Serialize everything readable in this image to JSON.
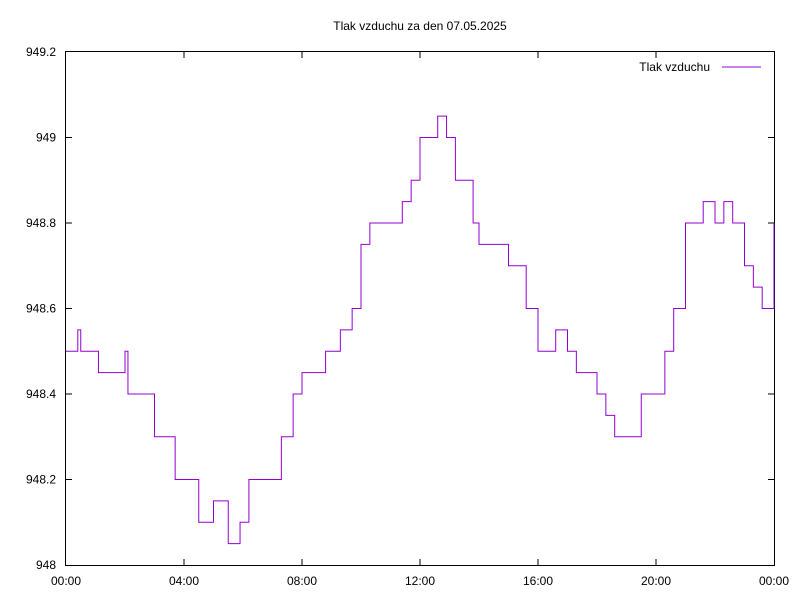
{
  "chart_data": {
    "type": "line",
    "title": "Tlak vzduchu za den 07.05.2025",
    "xlabel": "",
    "ylabel": "",
    "xlim_hours": [
      0,
      24
    ],
    "ylim": [
      948.0,
      949.2
    ],
    "grid": false,
    "legend_position": "top-right",
    "x_tick_labels": [
      "00:00",
      "04:00",
      "08:00",
      "12:00",
      "16:00",
      "20:00",
      "00:00"
    ],
    "y_tick_labels": [
      "948",
      "948.2",
      "948.4",
      "948.6",
      "948.8",
      "949",
      "949.2"
    ],
    "series": [
      {
        "name": "Tlak vzduchu",
        "color": "#9400d3",
        "x_hours": [
          0.0,
          0.4,
          0.5,
          1.0,
          1.1,
          2.0,
          2.1,
          2.7,
          3.0,
          3.3,
          3.6,
          3.7,
          4.0,
          4.5,
          5.0,
          5.5,
          5.9,
          6.2,
          6.9,
          7.3,
          7.7,
          8.0,
          8.4,
          8.8,
          9.0,
          9.3,
          9.7,
          10.0,
          10.3,
          10.6,
          11.0,
          11.4,
          11.7,
          12.0,
          12.3,
          12.6,
          12.9,
          13.2,
          13.5,
          13.8,
          14.0,
          14.3,
          14.6,
          15.0,
          15.3,
          15.6,
          16.0,
          16.3,
          16.6,
          17.0,
          17.3,
          17.6,
          18.0,
          18.3,
          18.6,
          19.0,
          19.5,
          20.0,
          20.3,
          20.6,
          21.0,
          21.3,
          21.6,
          22.0,
          22.3,
          22.6,
          23.0,
          23.3,
          23.6,
          24.0
        ],
        "values": [
          948.5,
          948.55,
          948.5,
          948.5,
          948.45,
          948.5,
          948.4,
          948.4,
          948.3,
          948.3,
          948.3,
          948.2,
          948.2,
          948.1,
          948.15,
          948.05,
          948.1,
          948.2,
          948.2,
          948.3,
          948.4,
          948.45,
          948.45,
          948.5,
          948.5,
          948.55,
          948.6,
          948.75,
          948.8,
          948.8,
          948.8,
          948.85,
          948.9,
          949.0,
          949.0,
          949.05,
          949.0,
          948.9,
          948.9,
          948.8,
          948.75,
          948.75,
          948.75,
          948.7,
          948.7,
          948.6,
          948.5,
          948.5,
          948.55,
          948.5,
          948.45,
          948.45,
          948.4,
          948.35,
          948.3,
          948.3,
          948.4,
          948.4,
          948.5,
          948.6,
          948.8,
          948.8,
          948.85,
          948.8,
          948.85,
          948.8,
          948.7,
          948.65,
          948.6,
          948.8
        ]
      }
    ]
  }
}
